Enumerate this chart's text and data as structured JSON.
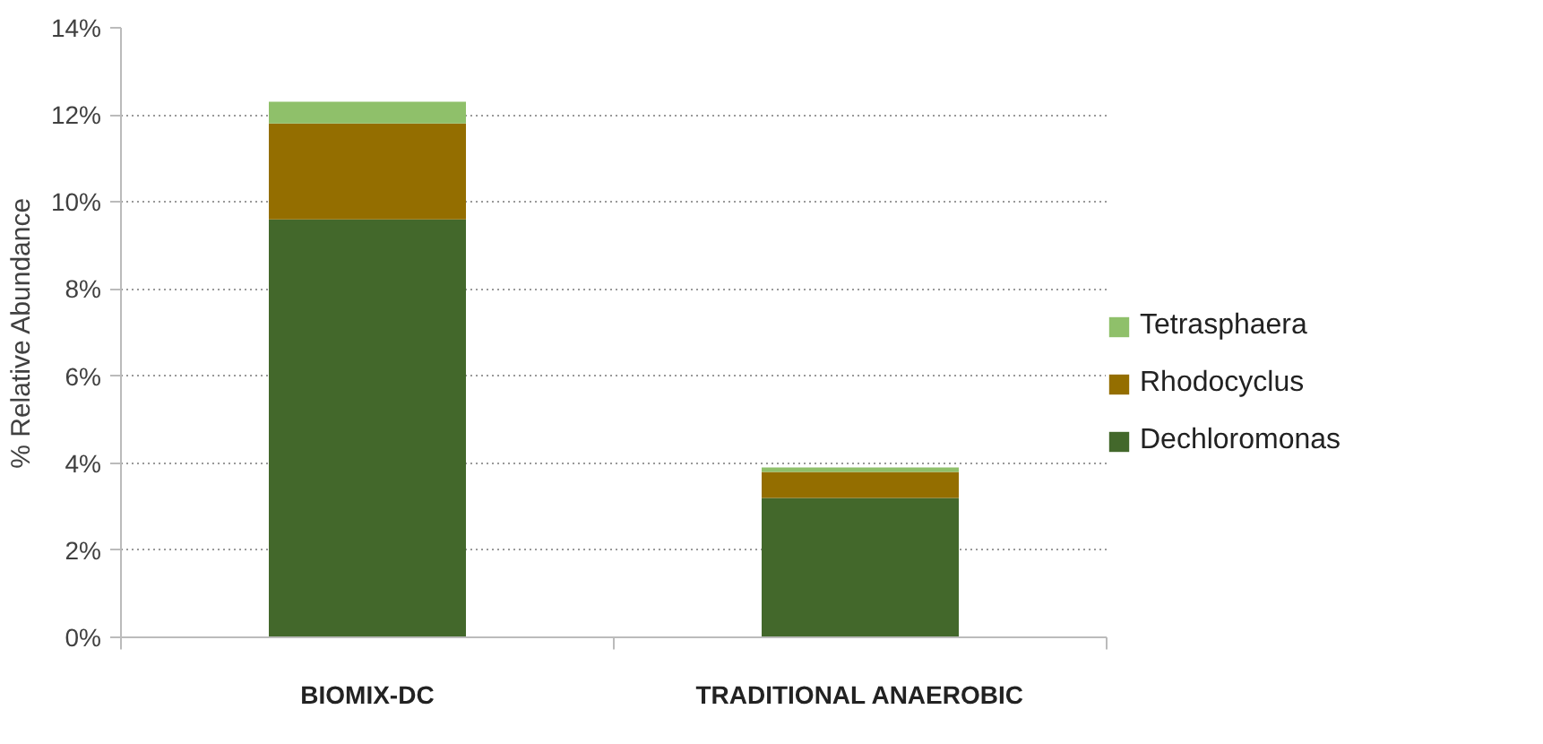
{
  "chart_data": {
    "type": "bar",
    "stacked": true,
    "ylabel": "% Relative Abundance",
    "categories": [
      "BIOMIX-DC",
      "TRADITIONAL ANAEROBIC"
    ],
    "series": [
      {
        "name": "Dechloromonas",
        "color": "#43682b",
        "values": [
          9.6,
          3.2
        ]
      },
      {
        "name": "Rhodocyclus",
        "color": "#946e00",
        "values": [
          2.2,
          0.6
        ]
      },
      {
        "name": "Tetrasphaera",
        "color": "#8fc06a",
        "values": [
          0.5,
          0.1
        ]
      }
    ],
    "ylim": [
      0,
      14
    ],
    "yticks": [
      {
        "value": 0,
        "label": "0%"
      },
      {
        "value": 2,
        "label": "2%"
      },
      {
        "value": 4,
        "label": "4%"
      },
      {
        "value": 6,
        "label": "6%"
      },
      {
        "value": 8,
        "label": "8%"
      },
      {
        "value": 10,
        "label": "10%"
      },
      {
        "value": 12,
        "label": "12%"
      },
      {
        "value": 14,
        "label": "14%"
      }
    ],
    "grid": "y",
    "legend": "right"
  }
}
